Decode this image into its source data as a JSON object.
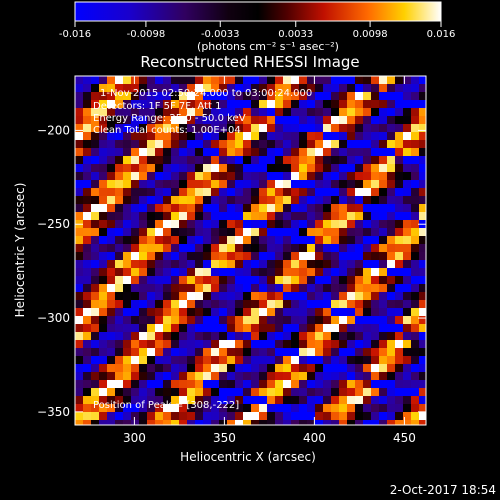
{
  "colorbar": {
    "tick_labels": [
      "-0.016",
      "-0.0098",
      "-0.0033",
      "0.0033",
      "0.0098",
      "0.016"
    ],
    "tick_values": [
      -0.016,
      -0.0098,
      -0.0033,
      0.0033,
      0.0098,
      0.016
    ],
    "range": [
      -0.016,
      0.016
    ],
    "unit_label": "(photons cm⁻² s⁻¹ asec⁻²)",
    "colors": [
      "#0000ff",
      "#220066",
      "#000000",
      "#660000",
      "#cc2200",
      "#ff7700",
      "#ffdd00",
      "#ffffff"
    ]
  },
  "chart_data": {
    "type": "heatmap",
    "title": "Reconstructed RHESSI Image",
    "xlabel": "Heliocentric X (arcsec)",
    "ylabel": "Heliocentric Y (arcsec)",
    "xlim": [
      267,
      462
    ],
    "ylim": [
      -357,
      -171
    ],
    "x_ticks": [
      300,
      350,
      400,
      450
    ],
    "y_ticks": [
      -350,
      -300,
      -250,
      -200
    ],
    "x_tick_labels": [
      "300",
      "350",
      "400",
      "450"
    ],
    "y_tick_labels": [
      "−350",
      "−300",
      "−250",
      "−200"
    ],
    "annotations": [
      "1-Nov-2015 02:50:24.000 to 03:00:24.000",
      "Detectors: 1F 5F 7F, Att 1",
      "Energy Range: 25.0 - 50.0 keV",
      "Clean    Total counts: 1.00E+04"
    ],
    "peak_label": "Position of Peak = [308,-222]",
    "peak_position": [
      308,
      -222
    ]
  },
  "footer": {
    "timestamp": "2-Oct-2017 18:54"
  }
}
